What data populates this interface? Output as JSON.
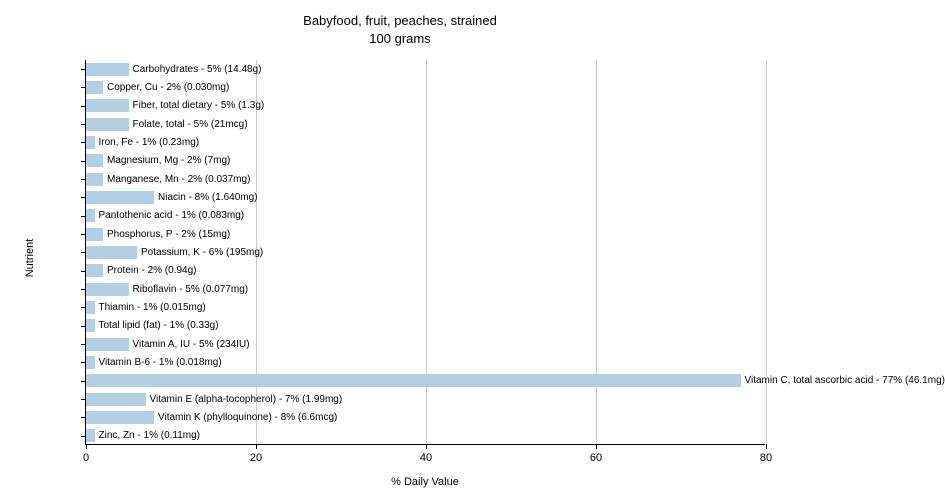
{
  "chart": {
    "type": "bar",
    "title_line1": "Babyfood, fruit, peaches, strained",
    "title_line2": "100 grams",
    "title_fontsize": 13,
    "x_axis_label": "% Daily Value",
    "y_axis_label": "Nutrient",
    "label_fontsize": 11,
    "xlim": [
      0,
      80
    ],
    "xticks": [
      0,
      20,
      40,
      60,
      80
    ],
    "bar_color": "#b3cde3",
    "grid_color": "#cccccc",
    "background_color": "#ffffff",
    "text_color": "#000000",
    "bar_label_fontsize": 10,
    "nutrients": [
      {
        "label": "Carbohydrates - 5% (14.48g)",
        "value": 5
      },
      {
        "label": "Copper, Cu - 2% (0.030mg)",
        "value": 2
      },
      {
        "label": "Fiber, total dietary - 5% (1.3g)",
        "value": 5
      },
      {
        "label": "Folate, total - 5% (21mcg)",
        "value": 5
      },
      {
        "label": "Iron, Fe - 1% (0.23mg)",
        "value": 1
      },
      {
        "label": "Magnesium, Mg - 2% (7mg)",
        "value": 2
      },
      {
        "label": "Manganese, Mn - 2% (0.037mg)",
        "value": 2
      },
      {
        "label": "Niacin - 8% (1.640mg)",
        "value": 8
      },
      {
        "label": "Pantothenic acid - 1% (0.083mg)",
        "value": 1
      },
      {
        "label": "Phosphorus, P - 2% (15mg)",
        "value": 2
      },
      {
        "label": "Potassium, K - 6% (195mg)",
        "value": 6
      },
      {
        "label": "Protein - 2% (0.94g)",
        "value": 2
      },
      {
        "label": "Riboflavin - 5% (0.077mg)",
        "value": 5
      },
      {
        "label": "Thiamin - 1% (0.015mg)",
        "value": 1
      },
      {
        "label": "Total lipid (fat) - 1% (0.33g)",
        "value": 1
      },
      {
        "label": "Vitamin A, IU - 5% (234IU)",
        "value": 5
      },
      {
        "label": "Vitamin B-6 - 1% (0.018mg)",
        "value": 1
      },
      {
        "label": "Vitamin C, total ascorbic acid - 77% (46.1mg)",
        "value": 77
      },
      {
        "label": "Vitamin E (alpha-tocopherol) - 7% (1.99mg)",
        "value": 7
      },
      {
        "label": "Vitamin K (phylloquinone) - 8% (6.6mcg)",
        "value": 8
      },
      {
        "label": "Zinc, Zn - 1% (0.11mg)",
        "value": 1
      }
    ]
  }
}
